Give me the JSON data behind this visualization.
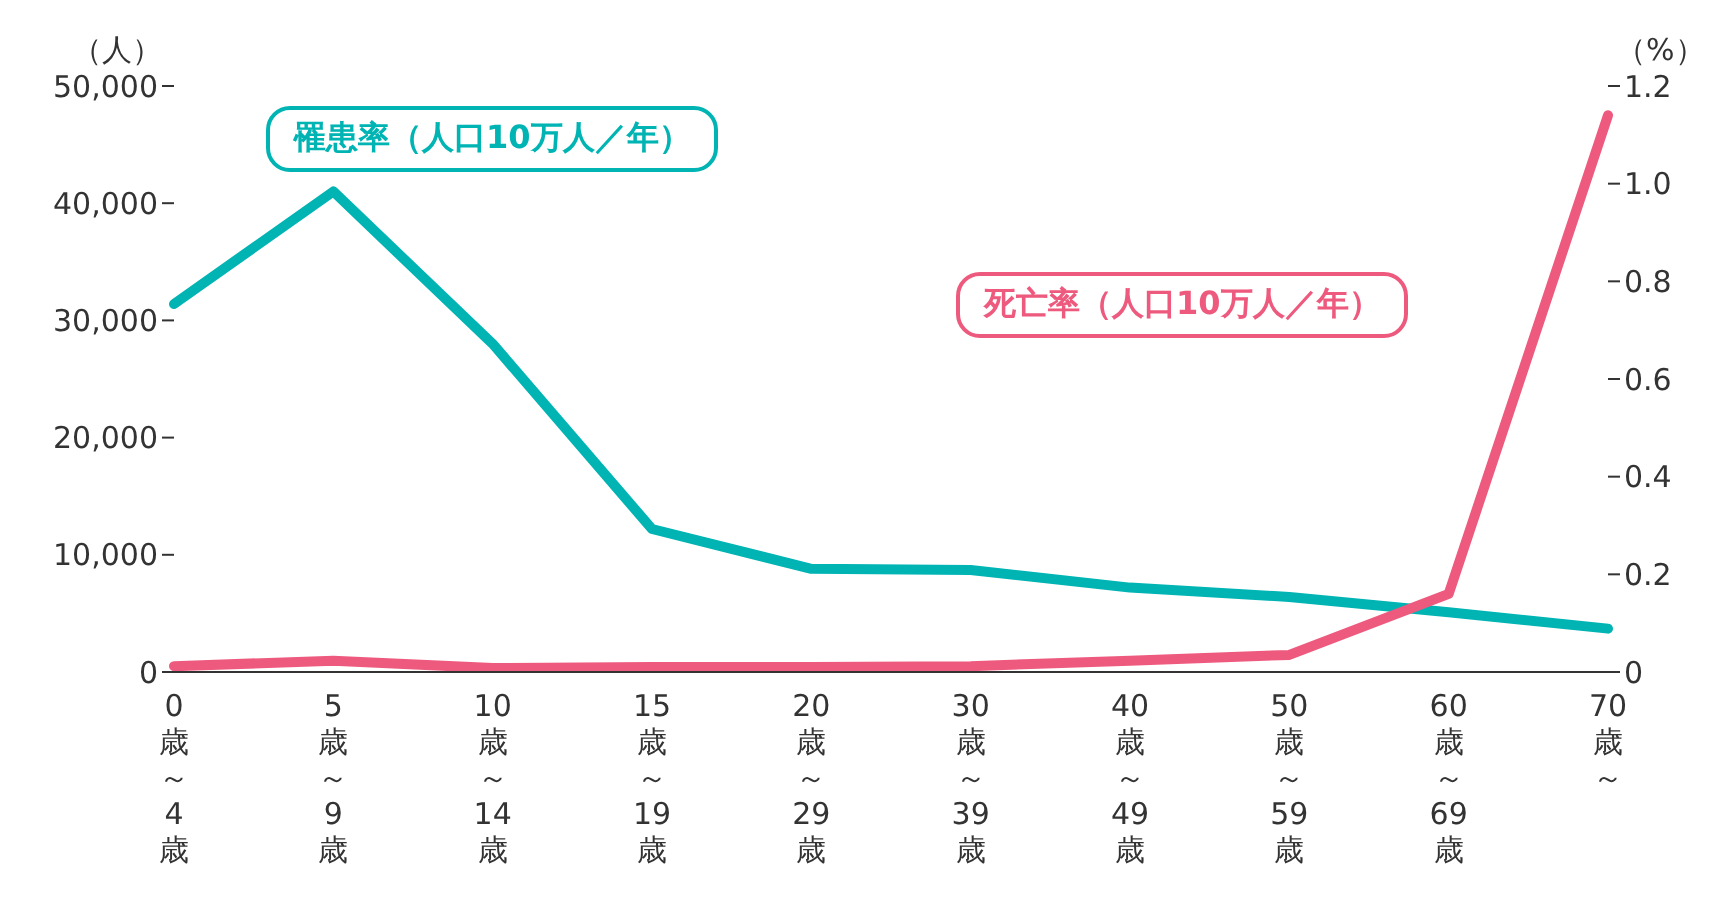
{
  "chart_data": {
    "type": "line",
    "categories": [
      "0歳～4歳",
      "5歳～9歳",
      "10歳～14歳",
      "15歳～19歳",
      "20歳～29歳",
      "30歳～39歳",
      "40歳～49歳",
      "50歳～59歳",
      "60歳～69歳",
      "70歳～"
    ],
    "ylabel": "（人）",
    "y2label": "（%）",
    "series": [
      {
        "name": "罹患率（人口10万人／年）",
        "color": "#00b4b4",
        "values": [
          31400,
          41000,
          28000,
          12200,
          8800,
          8700,
          7200,
          6400,
          5100,
          3700
        ]
      },
      {
        "name": "死亡率（人口10万人／年）",
        "color": "#ee5a7e",
        "axis": "y2",
        "values": [
          0.012,
          0.023,
          0.008,
          0.01,
          0.01,
          0.012,
          0.023,
          0.035,
          0.16,
          1.14
        ]
      }
    ],
    "ylim": [
      0,
      50000
    ],
    "yticks": [
      0,
      {
        "value": 10000,
        "label": "10,000"
      },
      {
        "value": 20000,
        "label": "20,000"
      },
      {
        "value": 30000,
        "label": "30,000"
      },
      {
        "value": 40000,
        "label": "40,000"
      },
      {
        "value": 50000,
        "label": "50,000"
      }
    ],
    "y2lim": [
      0,
      1.2
    ],
    "y2ticks": [
      0,
      0.2,
      0.4,
      0.6,
      0.8,
      {
        "value": 1,
        "label": "1.0"
      },
      1.2
    ],
    "marker": "none",
    "line_style": "solid"
  }
}
